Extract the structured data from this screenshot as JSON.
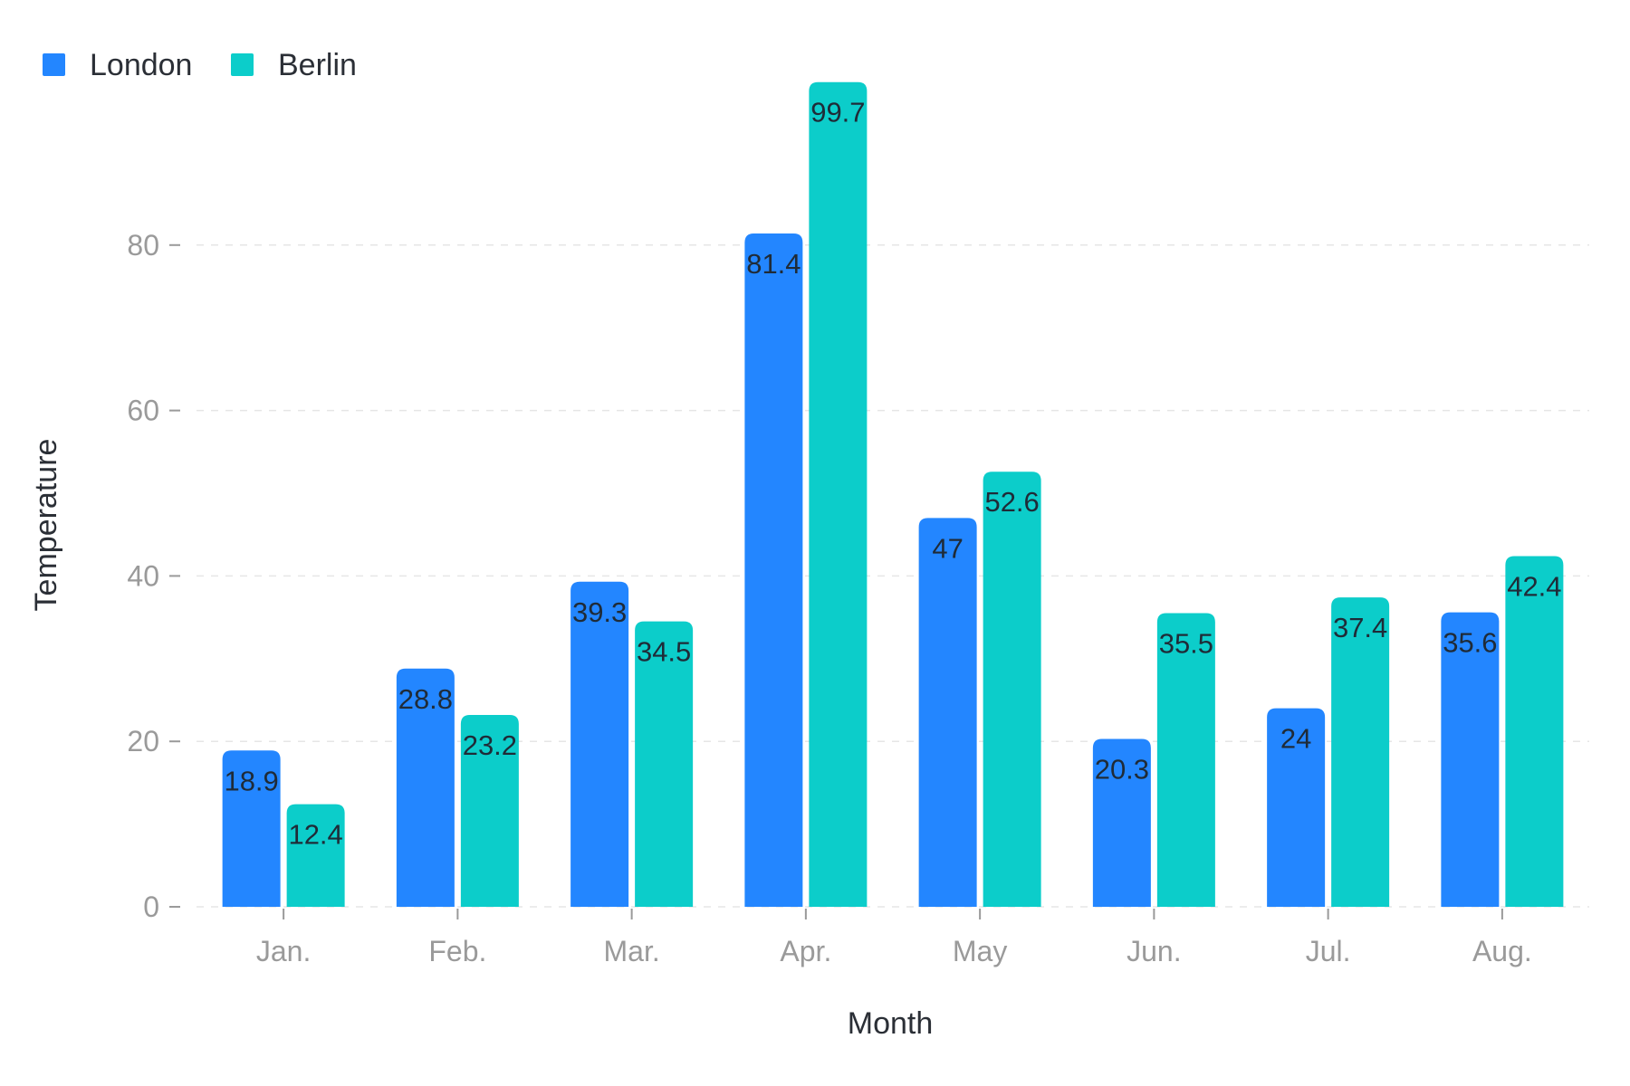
{
  "chart_data": {
    "type": "bar",
    "xlabel": "Month",
    "ylabel": "Temperature",
    "categories": [
      "Jan.",
      "Feb.",
      "Mar.",
      "Apr.",
      "May",
      "Jun.",
      "Jul.",
      "Aug."
    ],
    "series": [
      {
        "name": "London",
        "color": "#2386ff",
        "values": [
          18.9,
          28.8,
          39.3,
          81.4,
          47,
          20.3,
          24,
          35.6
        ]
      },
      {
        "name": "Berlin",
        "color": "#0ccdca",
        "values": [
          12.4,
          23.2,
          34.5,
          99.7,
          52.6,
          35.5,
          37.4,
          42.4
        ]
      }
    ],
    "ylim": [
      0,
      100
    ],
    "yticks": [
      0,
      20,
      40,
      60,
      80
    ],
    "grid": true,
    "legend": "top-left",
    "data_labels": true
  }
}
